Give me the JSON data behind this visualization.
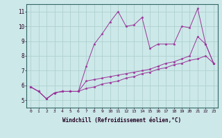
{
  "xlabel": "Windchill (Refroidissement éolien,°C)",
  "background_color": "#cce8e8",
  "grid_color": "#aacccc",
  "line_color": "#993399",
  "xlim": [
    -0.5,
    23.5
  ],
  "ylim": [
    4.5,
    11.5
  ],
  "xticks": [
    0,
    1,
    2,
    3,
    4,
    5,
    6,
    7,
    8,
    9,
    10,
    11,
    12,
    13,
    14,
    15,
    16,
    17,
    18,
    19,
    20,
    21,
    22,
    23
  ],
  "yticks": [
    5,
    6,
    7,
    8,
    9,
    10,
    11
  ],
  "series": [
    [
      5.9,
      5.6,
      5.1,
      5.5,
      5.6,
      5.6,
      5.6,
      7.3,
      8.8,
      9.5,
      10.3,
      11.0,
      10.0,
      10.1,
      10.6,
      8.5,
      8.8,
      8.8,
      8.8,
      10.0,
      9.9,
      11.2,
      8.8,
      7.5
    ],
    [
      5.9,
      5.6,
      5.1,
      5.5,
      5.6,
      5.6,
      5.6,
      6.3,
      6.4,
      6.5,
      6.6,
      6.7,
      6.8,
      6.9,
      7.0,
      7.1,
      7.3,
      7.5,
      7.6,
      7.8,
      8.0,
      9.3,
      8.8,
      7.5
    ],
    [
      5.9,
      5.6,
      5.1,
      5.5,
      5.6,
      5.6,
      5.6,
      5.8,
      5.9,
      6.1,
      6.2,
      6.3,
      6.5,
      6.6,
      6.8,
      6.9,
      7.1,
      7.2,
      7.4,
      7.5,
      7.7,
      7.8,
      8.0,
      7.5
    ]
  ]
}
